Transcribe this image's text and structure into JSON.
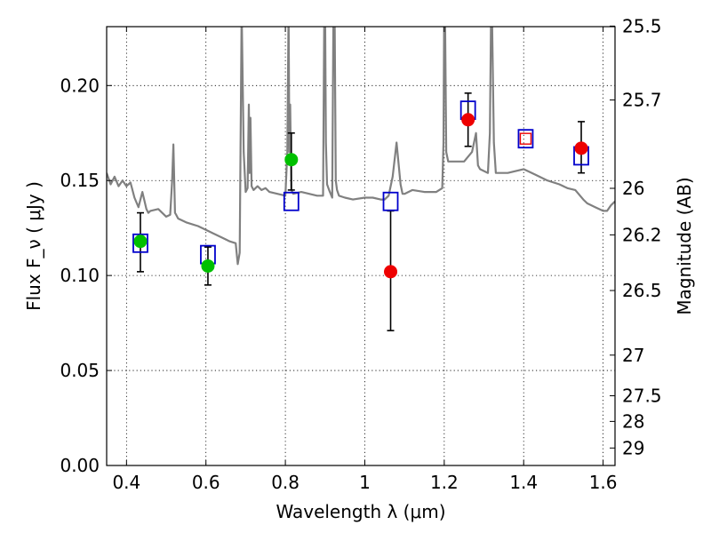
{
  "chart_data": {
    "type": "scatter",
    "xlabel": "Wavelength  λ (μm)",
    "ylabel": "Flux  F_ν  ( μJy )",
    "y2label": "Magnitude (AB)",
    "xlim": [
      0.35,
      1.63
    ],
    "ylim": [
      0.0,
      0.231
    ],
    "grid": true,
    "x_ticks": [
      0.4,
      0.6,
      0.8,
      1.0,
      1.2,
      1.4,
      1.6
    ],
    "x_tick_labels": [
      "0.4",
      "0.6",
      "0.8",
      "1",
      "1.2",
      "1.4",
      "1.6"
    ],
    "y_ticks": [
      0.0,
      0.05,
      0.1,
      0.15,
      0.2
    ],
    "y_tick_labels": [
      "0.00",
      "0.05",
      "0.10",
      "0.15",
      "0.20"
    ],
    "y2_ticks": [
      {
        "label": "25.5",
        "flux": 0.2313
      },
      {
        "label": "25.7",
        "flux": 0.1924
      },
      {
        "label": "26",
        "flux": 0.1459
      },
      {
        "label": "26.2",
        "flux": 0.1214
      },
      {
        "label": "26.5",
        "flux": 0.0921
      },
      {
        "label": "27",
        "flux": 0.0581
      },
      {
        "label": "27.5",
        "flux": 0.0367
      },
      {
        "label": "28",
        "flux": 0.0232
      },
      {
        "label": "29",
        "flux": 0.0092
      }
    ],
    "colors": {
      "spectrum": "#808080",
      "model_box": "#0000cc",
      "green": "#00c000",
      "red": "#ee0000",
      "errorbar": "#000000"
    },
    "series": [
      {
        "kind": "observed-green",
        "x": [
          0.435,
          0.605,
          0.815
        ],
        "y": [
          0.118,
          0.105,
          0.161
        ],
        "yerr_low": [
          0.102,
          0.095,
          0.145
        ],
        "yerr_high": [
          0.133,
          0.115,
          0.175
        ]
      },
      {
        "kind": "observed-red",
        "x": [
          1.065,
          1.26,
          1.405,
          1.545
        ],
        "y": [
          0.102,
          0.182,
          0.172,
          0.167
        ],
        "yerr_low": [
          0.071,
          0.168,
          null,
          0.154
        ],
        "yerr_high": [
          0.134,
          0.196,
          null,
          0.181
        ]
      },
      {
        "kind": "model-boxes",
        "x": [
          0.435,
          0.605,
          0.815,
          1.065,
          1.26,
          1.405,
          1.545
        ],
        "y": [
          0.117,
          0.111,
          0.139,
          0.139,
          0.187,
          0.172,
          0.163
        ]
      }
    ],
    "spectrum": {
      "kind": "line",
      "x": [
        0.35,
        0.36,
        0.37,
        0.38,
        0.39,
        0.4,
        0.41,
        0.42,
        0.43,
        0.44,
        0.45,
        0.455,
        0.46,
        0.48,
        0.5,
        0.51,
        0.515,
        0.518,
        0.52,
        0.522,
        0.525,
        0.53,
        0.55,
        0.58,
        0.6,
        0.62,
        0.64,
        0.66,
        0.675,
        0.68,
        0.685,
        0.69,
        0.695,
        0.7,
        0.705,
        0.708,
        0.71,
        0.712,
        0.715,
        0.72,
        0.73,
        0.74,
        0.75,
        0.76,
        0.78,
        0.8,
        0.805,
        0.808,
        0.81,
        0.812,
        0.815,
        0.82,
        0.84,
        0.86,
        0.88,
        0.895,
        0.898,
        0.9,
        0.902,
        0.905,
        0.91,
        0.918,
        0.921,
        0.924,
        0.927,
        0.93,
        0.935,
        0.95,
        0.97,
        1.0,
        1.02,
        1.04,
        1.05,
        1.06,
        1.07,
        1.08,
        1.09,
        1.095,
        1.1,
        1.12,
        1.15,
        1.18,
        1.195,
        1.198,
        1.2,
        1.202,
        1.205,
        1.21,
        1.23,
        1.25,
        1.27,
        1.28,
        1.285,
        1.29,
        1.31,
        1.315,
        1.318,
        1.32,
        1.325,
        1.33,
        1.36,
        1.4,
        1.43,
        1.46,
        1.49,
        1.51,
        1.53,
        1.55,
        1.56,
        1.58,
        1.6,
        1.61,
        1.62,
        1.63
      ],
      "y": [
        0.154,
        0.148,
        0.152,
        0.147,
        0.15,
        0.147,
        0.149,
        0.141,
        0.136,
        0.144,
        0.135,
        0.133,
        0.134,
        0.135,
        0.131,
        0.132,
        0.15,
        0.169,
        0.151,
        0.133,
        0.132,
        0.13,
        0.128,
        0.126,
        0.124,
        0.122,
        0.12,
        0.118,
        0.117,
        0.106,
        0.112,
        0.24,
        0.165,
        0.144,
        0.146,
        0.19,
        0.154,
        0.183,
        0.147,
        0.145,
        0.147,
        0.145,
        0.146,
        0.144,
        0.143,
        0.142,
        0.165,
        0.24,
        0.165,
        0.19,
        0.145,
        0.143,
        0.144,
        0.143,
        0.142,
        0.142,
        0.24,
        0.24,
        0.17,
        0.148,
        0.145,
        0.141,
        0.24,
        0.24,
        0.15,
        0.145,
        0.142,
        0.141,
        0.14,
        0.141,
        0.141,
        0.14,
        0.14,
        0.142,
        0.152,
        0.17,
        0.148,
        0.143,
        0.143,
        0.145,
        0.144,
        0.144,
        0.146,
        0.17,
        0.24,
        0.24,
        0.165,
        0.16,
        0.16,
        0.16,
        0.165,
        0.175,
        0.158,
        0.156,
        0.154,
        0.175,
        0.24,
        0.24,
        0.17,
        0.154,
        0.154,
        0.156,
        0.153,
        0.15,
        0.148,
        0.146,
        0.145,
        0.14,
        0.138,
        0.136,
        0.134,
        0.134,
        0.137,
        0.139
      ]
    }
  }
}
